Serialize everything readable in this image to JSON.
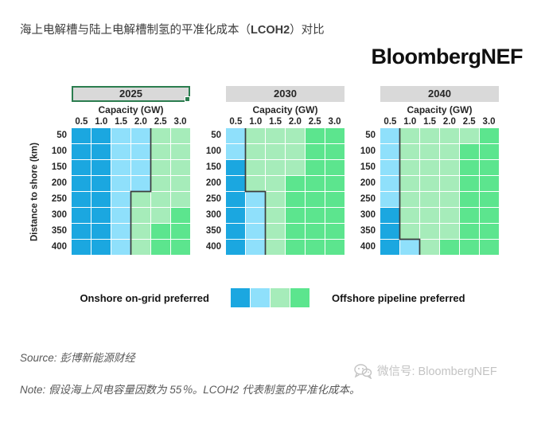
{
  "title": {
    "part1": "海上电解槽与陆上电解槽制氢的平准化成本（",
    "bold": "LCOH2",
    "part2": "）对比"
  },
  "logo": "BloombergNEF",
  "chart_data": {
    "type": "heatmap",
    "x_label": "Capacity (GW)",
    "y_label": "Distance to shore (km)",
    "x_ticks": [
      "0.5",
      "1.0",
      "1.5",
      "2.0",
      "2.5",
      "3.0"
    ],
    "y_ticks": [
      "50",
      "100",
      "150",
      "200",
      "250",
      "300",
      "350",
      "400"
    ],
    "colors": {
      "db": "#1ba7e0",
      "lb": "#8fe0fb",
      "lg": "#a6ecba",
      "mg": "#5ce58e"
    },
    "boundary_color": "#3c3c3c",
    "panels": [
      {
        "year": "2025",
        "selected": true,
        "cells": [
          [
            "db",
            "db",
            "lb",
            "lb",
            "lg",
            "lg"
          ],
          [
            "db",
            "db",
            "lb",
            "lb",
            "lg",
            "lg"
          ],
          [
            "db",
            "db",
            "lb",
            "lb",
            "lg",
            "lg"
          ],
          [
            "db",
            "db",
            "lb",
            "lb",
            "lg",
            "lg"
          ],
          [
            "db",
            "db",
            "lb",
            "lg",
            "lg",
            "lg"
          ],
          [
            "db",
            "db",
            "lb",
            "lg",
            "lg",
            "mg"
          ],
          [
            "db",
            "db",
            "lb",
            "lg",
            "mg",
            "mg"
          ],
          [
            "db",
            "db",
            "lb",
            "lg",
            "mg",
            "mg"
          ]
        ],
        "boundary_cols": [
          4,
          4,
          4,
          4,
          3,
          3,
          3,
          3
        ]
      },
      {
        "year": "2030",
        "selected": false,
        "cells": [
          [
            "lb",
            "lg",
            "lg",
            "lg",
            "mg",
            "mg"
          ],
          [
            "lb",
            "lg",
            "lg",
            "lg",
            "mg",
            "mg"
          ],
          [
            "db",
            "lg",
            "lg",
            "lg",
            "mg",
            "mg"
          ],
          [
            "db",
            "lg",
            "lg",
            "mg",
            "mg",
            "mg"
          ],
          [
            "db",
            "lb",
            "lg",
            "mg",
            "mg",
            "mg"
          ],
          [
            "db",
            "lb",
            "lg",
            "mg",
            "mg",
            "mg"
          ],
          [
            "db",
            "lb",
            "lg",
            "mg",
            "mg",
            "mg"
          ],
          [
            "db",
            "lb",
            "lg",
            "mg",
            "mg",
            "mg"
          ]
        ],
        "boundary_cols": [
          1,
          1,
          1,
          1,
          2,
          2,
          2,
          2
        ]
      },
      {
        "year": "2040",
        "selected": false,
        "cells": [
          [
            "lb",
            "lg",
            "lg",
            "lg",
            "lg",
            "mg"
          ],
          [
            "lb",
            "lg",
            "lg",
            "lg",
            "mg",
            "mg"
          ],
          [
            "lb",
            "lg",
            "lg",
            "lg",
            "mg",
            "mg"
          ],
          [
            "lb",
            "lg",
            "lg",
            "lg",
            "mg",
            "mg"
          ],
          [
            "lb",
            "lg",
            "lg",
            "lg",
            "mg",
            "mg"
          ],
          [
            "db",
            "lg",
            "lg",
            "lg",
            "mg",
            "mg"
          ],
          [
            "db",
            "lg",
            "lg",
            "lg",
            "mg",
            "mg"
          ],
          [
            "db",
            "lb",
            "lg",
            "mg",
            "mg",
            "mg"
          ]
        ],
        "boundary_cols": [
          1,
          1,
          1,
          1,
          1,
          1,
          1,
          2
        ]
      }
    ]
  },
  "legend": {
    "left_label": "Onshore on-grid preferred",
    "right_label": "Offshore pipeline preferred",
    "swatch_order": [
      "db",
      "lb",
      "lg",
      "mg"
    ]
  },
  "footer": {
    "source": "Source: 彭博新能源财经",
    "note": "Note: 假设海上风电容量因数为 55％。LCOH2 代表制氢的平准化成本。"
  },
  "watermark": {
    "text": "微信号: BloombergNEF"
  }
}
